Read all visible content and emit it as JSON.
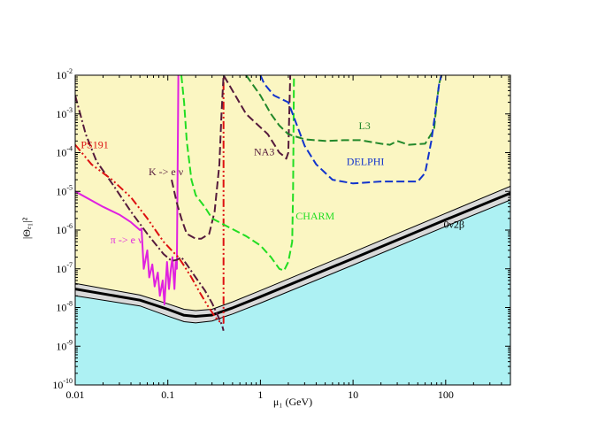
{
  "chart_data": {
    "type": "line",
    "xscale": "log",
    "yscale": "log",
    "xlim": [
      0.01,
      500
    ],
    "ylim": [
      1e-10,
      0.01
    ],
    "xlabel": "μ₁ (GeV)",
    "ylabel": "|Θₑ₁|²",
    "x_ticks": [
      "0.01",
      "0.1",
      "1",
      "10",
      "100"
    ],
    "y_tick_exponents": [
      "-10",
      "-9",
      "-8",
      "-7",
      "-6",
      "-5",
      "-4",
      "-3",
      "-2"
    ],
    "y_tick_base": "10",
    "grid": false,
    "legend": "none",
    "colors": {
      "allowed_region": "#fbf6c2",
      "excluded_region": "#adf1f3",
      "band": "#d9d9d9"
    },
    "regions": [
      {
        "name": "0ν2β",
        "x": [
          0.01,
          0.05,
          0.1,
          0.15,
          0.2,
          0.3,
          0.5,
          1,
          10,
          100,
          500
        ],
        "lower": [
          2e-08,
          1.1e-08,
          6e-09,
          4.3e-09,
          4e-09,
          4.5e-09,
          6.8e-09,
          1.3e-08,
          1.25e-07,
          1.25e-06,
          6e-06
        ],
        "upper": [
          4.2e-08,
          2.1e-08,
          1.25e-08,
          9e-09,
          8.3e-09,
          9e-09,
          1.4e-08,
          2.75e-08,
          2.7e-07,
          2.7e-06,
          1.35e-05
        ]
      }
    ],
    "series": [
      {
        "name": "0ν2β",
        "color": "#000000",
        "style": "solid",
        "x": [
          0.01,
          0.05,
          0.1,
          0.15,
          0.2,
          0.3,
          0.5,
          1,
          10,
          100,
          500
        ],
        "y": [
          3e-08,
          1.55e-08,
          9e-09,
          6.3e-09,
          5.9e-09,
          6.4e-09,
          9.8e-09,
          1.9e-08,
          1.85e-07,
          1.85e-06,
          9e-06
        ]
      },
      {
        "name": "π -> e ν",
        "color": "#e020e0",
        "style": "solid",
        "x": [
          0.01,
          0.02,
          0.03,
          0.04,
          0.05,
          0.052,
          0.055,
          0.06,
          0.063,
          0.068,
          0.072,
          0.078,
          0.082,
          0.088,
          0.092,
          0.098,
          0.103,
          0.108,
          0.112,
          0.118,
          0.122,
          0.125,
          0.127,
          0.129,
          0.13
        ],
        "y": [
          1e-05,
          4e-06,
          2.5e-06,
          1.6e-06,
          1e-06,
          1.1e-06,
          1e-07,
          3e-07,
          6e-08,
          1.3e-07,
          3.5e-08,
          8e-08,
          2e-08,
          5e-08,
          1.2e-08,
          1.5e-07,
          3e-08,
          1e-07,
          2e-07,
          3e-08,
          1.5e-07,
          1e-07,
          1e-05,
          0.001,
          0.01
        ]
      },
      {
        "name": "K -> e ν",
        "color": "#551a3c",
        "style": "dashdot",
        "x": [
          0.01,
          0.013,
          0.017,
          0.025,
          0.04,
          0.06,
          0.09,
          0.11,
          0.125,
          0.14,
          0.16,
          0.2,
          0.25,
          0.3,
          0.33,
          0.36,
          0.385,
          0.4
        ],
        "y": [
          0.003,
          0.0003,
          6e-05,
          1.6e-05,
          3e-06,
          8e-07,
          2.4e-07,
          1.6e-07,
          1.7e-07,
          2e-07,
          1.3e-07,
          6e-08,
          2.8e-08,
          1.3e-08,
          8e-09,
          5e-09,
          3.5e-09,
          2.5e-09
        ]
      },
      {
        "name": "PS191",
        "color": "#dd1111",
        "style": "dashdotdot",
        "x": [
          0.01,
          0.015,
          0.025,
          0.04,
          0.06,
          0.09,
          0.11,
          0.13,
          0.15,
          0.18,
          0.22,
          0.27,
          0.32,
          0.35,
          0.4,
          0.4,
          0.4
        ],
        "y": [
          0.00016,
          5e-05,
          2e-05,
          7e-06,
          2e-06,
          5e-07,
          3e-07,
          2e-07,
          1.2e-07,
          6e-08,
          2.5e-08,
          1.1e-08,
          6e-09,
          4.5e-09,
          4e-09,
          3e-07,
          0.01
        ]
      },
      {
        "name": "NA3",
        "color": "#551a3c",
        "style": "dashed",
        "x": [
          0.11,
          0.125,
          0.14,
          0.16,
          0.2,
          0.23,
          0.28,
          0.32,
          0.36,
          0.38,
          0.4,
          0.7,
          1.2,
          1.6,
          1.8,
          1.9,
          2,
          2.05,
          2.1
        ],
        "y": [
          2e-05,
          5e-06,
          2e-06,
          8e-07,
          6e-07,
          6e-07,
          8e-07,
          3e-06,
          5e-05,
          0.001,
          0.01,
          0.001,
          0.0003,
          0.0001,
          8e-05,
          7e-05,
          0.0001,
          0.001,
          0.01
        ]
      },
      {
        "name": "CHARM",
        "color": "#22dd22",
        "style": "dashed",
        "x": [
          0.14,
          0.15,
          0.16,
          0.18,
          0.2,
          0.25,
          0.3,
          0.45,
          0.7,
          1.0,
          1.3,
          1.6,
          1.8,
          2.0,
          2.2,
          2.25,
          2.3
        ],
        "y": [
          0.01,
          0.002,
          0.0002,
          2e-05,
          8e-06,
          4e-06,
          2e-06,
          1.2e-06,
          7e-07,
          4e-07,
          2e-07,
          1e-07,
          9e-08,
          1.5e-07,
          5e-07,
          1e-05,
          0.01
        ]
      },
      {
        "name": "L3",
        "color": "#22882a",
        "style": "dashed",
        "x": [
          0.7,
          1.0,
          1.3,
          1.6,
          2,
          3,
          5,
          8,
          12,
          20,
          25,
          30,
          40,
          60,
          75,
          80,
          85,
          90
        ],
        "y": [
          0.01,
          0.003,
          0.001,
          0.0005,
          0.0003,
          0.00022,
          0.0002,
          0.00021,
          0.00021,
          0.00017,
          0.00016,
          0.0002,
          0.00016,
          0.00017,
          0.0004,
          0.002,
          0.006,
          0.01
        ]
      },
      {
        "name": "DELPHI",
        "color": "#1133cc",
        "style": "dashed",
        "x": [
          1.0,
          1.1,
          1.4,
          2,
          3,
          4,
          6,
          10,
          20,
          50,
          60,
          70,
          80,
          85,
          90
        ],
        "y": [
          0.01,
          0.006,
          0.003,
          0.002,
          0.00015,
          5e-05,
          2e-05,
          1.6e-05,
          1.8e-05,
          1.8e-05,
          3e-05,
          0.0002,
          0.002,
          0.006,
          0.01
        ]
      }
    ],
    "annotations": [
      {
        "text": "PS191",
        "color": "#dd1111",
        "x": 0.0115,
        "y": 0.00013
      },
      {
        "text": "K -> e ν",
        "color": "#551a3c",
        "x": 0.062,
        "y": 2.6e-05
      },
      {
        "text": "π -> e ν",
        "color": "#e020e0",
        "x": 0.024,
        "y": 4.5e-07
      },
      {
        "text": "NA3",
        "color": "#551a3c",
        "x": 0.85,
        "y": 8.5e-05
      },
      {
        "text": "L3",
        "color": "#22882a",
        "x": 11.5,
        "y": 0.0004
      },
      {
        "text": "DELPHI",
        "color": "#1133cc",
        "x": 8.5,
        "y": 4.8e-05
      },
      {
        "text": "CHARM",
        "color": "#22dd22",
        "x": 2.4,
        "y": 1.9e-06
      },
      {
        "text": "0ν2β",
        "color": "#000000",
        "x": 95,
        "y": 1.15e-06
      }
    ]
  }
}
